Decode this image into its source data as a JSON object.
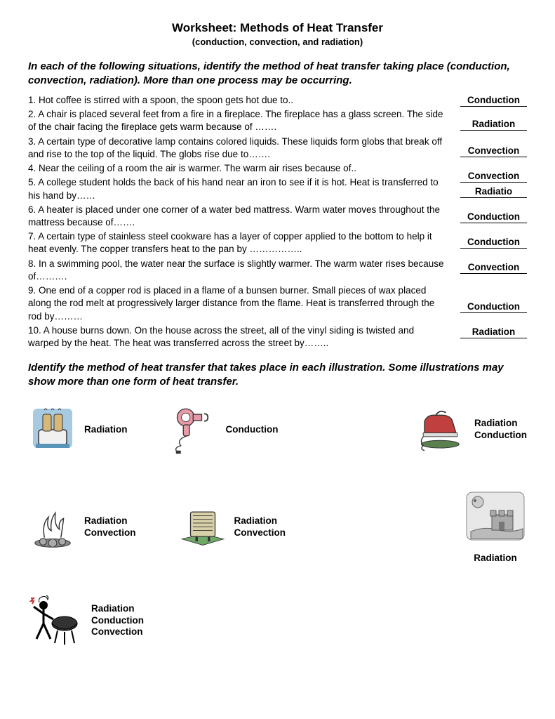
{
  "title": "Worksheet:  Methods of Heat Transfer",
  "subtitle": "(conduction, convection, and radiation)",
  "instructions1": "In each of the following situations, identify the method of heat transfer taking place (conduction, convection, radiation).  More than one process may be occurring.",
  "questions": [
    "1.  Hot coffee is stirred with a spoon, the spoon gets hot due to..",
    "2.  A chair is placed several feet from a fire in a fireplace. The fireplace has a glass screen.  The side of the chair facing the fireplace gets warm because of …….",
    "3.  A certain type of decorative lamp contains colored liquids. These liquids form globs that break off and rise to the top of the liquid.  The globs rise due to…….",
    "4.  Near the ceiling of a room the air is warmer.  The warm air rises because of..",
    "5.  A college student holds the back of his hand near an iron to see if it is hot.  Heat is transferred to his hand by……",
    "6.  A heater is placed under one corner of a water bed mattress. Warm water moves throughout the mattress because of…….",
    "7.  A certain type of stainless steel cookware has a layer of copper applied to the bottom to help it heat evenly.  The copper transfers heat to the pan by ……………..",
    "8.  In a swimming pool, the water near the surface is slightly warmer.  The warm water rises because of……….",
    "9.  One end of a copper rod is placed in a flame of a bunsen burner.  Small pieces of wax placed along the rod melt at progressively larger distance from the flame.  Heat is transferred through the rod by………",
    "10.  A house burns down.  On the house across the street, all of the vinyl siding is twisted and warped by the heat. The heat was transferred across the street by…….."
  ],
  "answers": [
    "Conduction",
    "Radiation",
    "Convection",
    "Convection",
    "Radiatio",
    "Conduction",
    "Conduction",
    "Convection",
    "Conduction",
    "Radiation"
  ],
  "answer_spacers": [
    0,
    12,
    16,
    14,
    0,
    14,
    14,
    14,
    34,
    14
  ],
  "instructions2": "Identify the method of heat transfer that takes place in each illustration.  Some illustrations may show more than one form of heat transfer.",
  "illus": {
    "toaster": "Radiation",
    "hairdryer": "Conduction",
    "iron": "Radiation\nConduction",
    "campfire": "Radiation\nConvection",
    "heater": "Radiation\nConvection",
    "sandcastle": "Radiation",
    "bbq": "Radiation\nConduction\nConvection"
  },
  "colors": {
    "toaster_body": "#a8cae0",
    "toaster_base": "#5a94b8",
    "hairdryer": "#e89aa8",
    "iron_body": "#c04040",
    "iron_rest": "#5a8050",
    "heater_face": "#d8d0a8",
    "heater_mat": "#70a868"
  }
}
